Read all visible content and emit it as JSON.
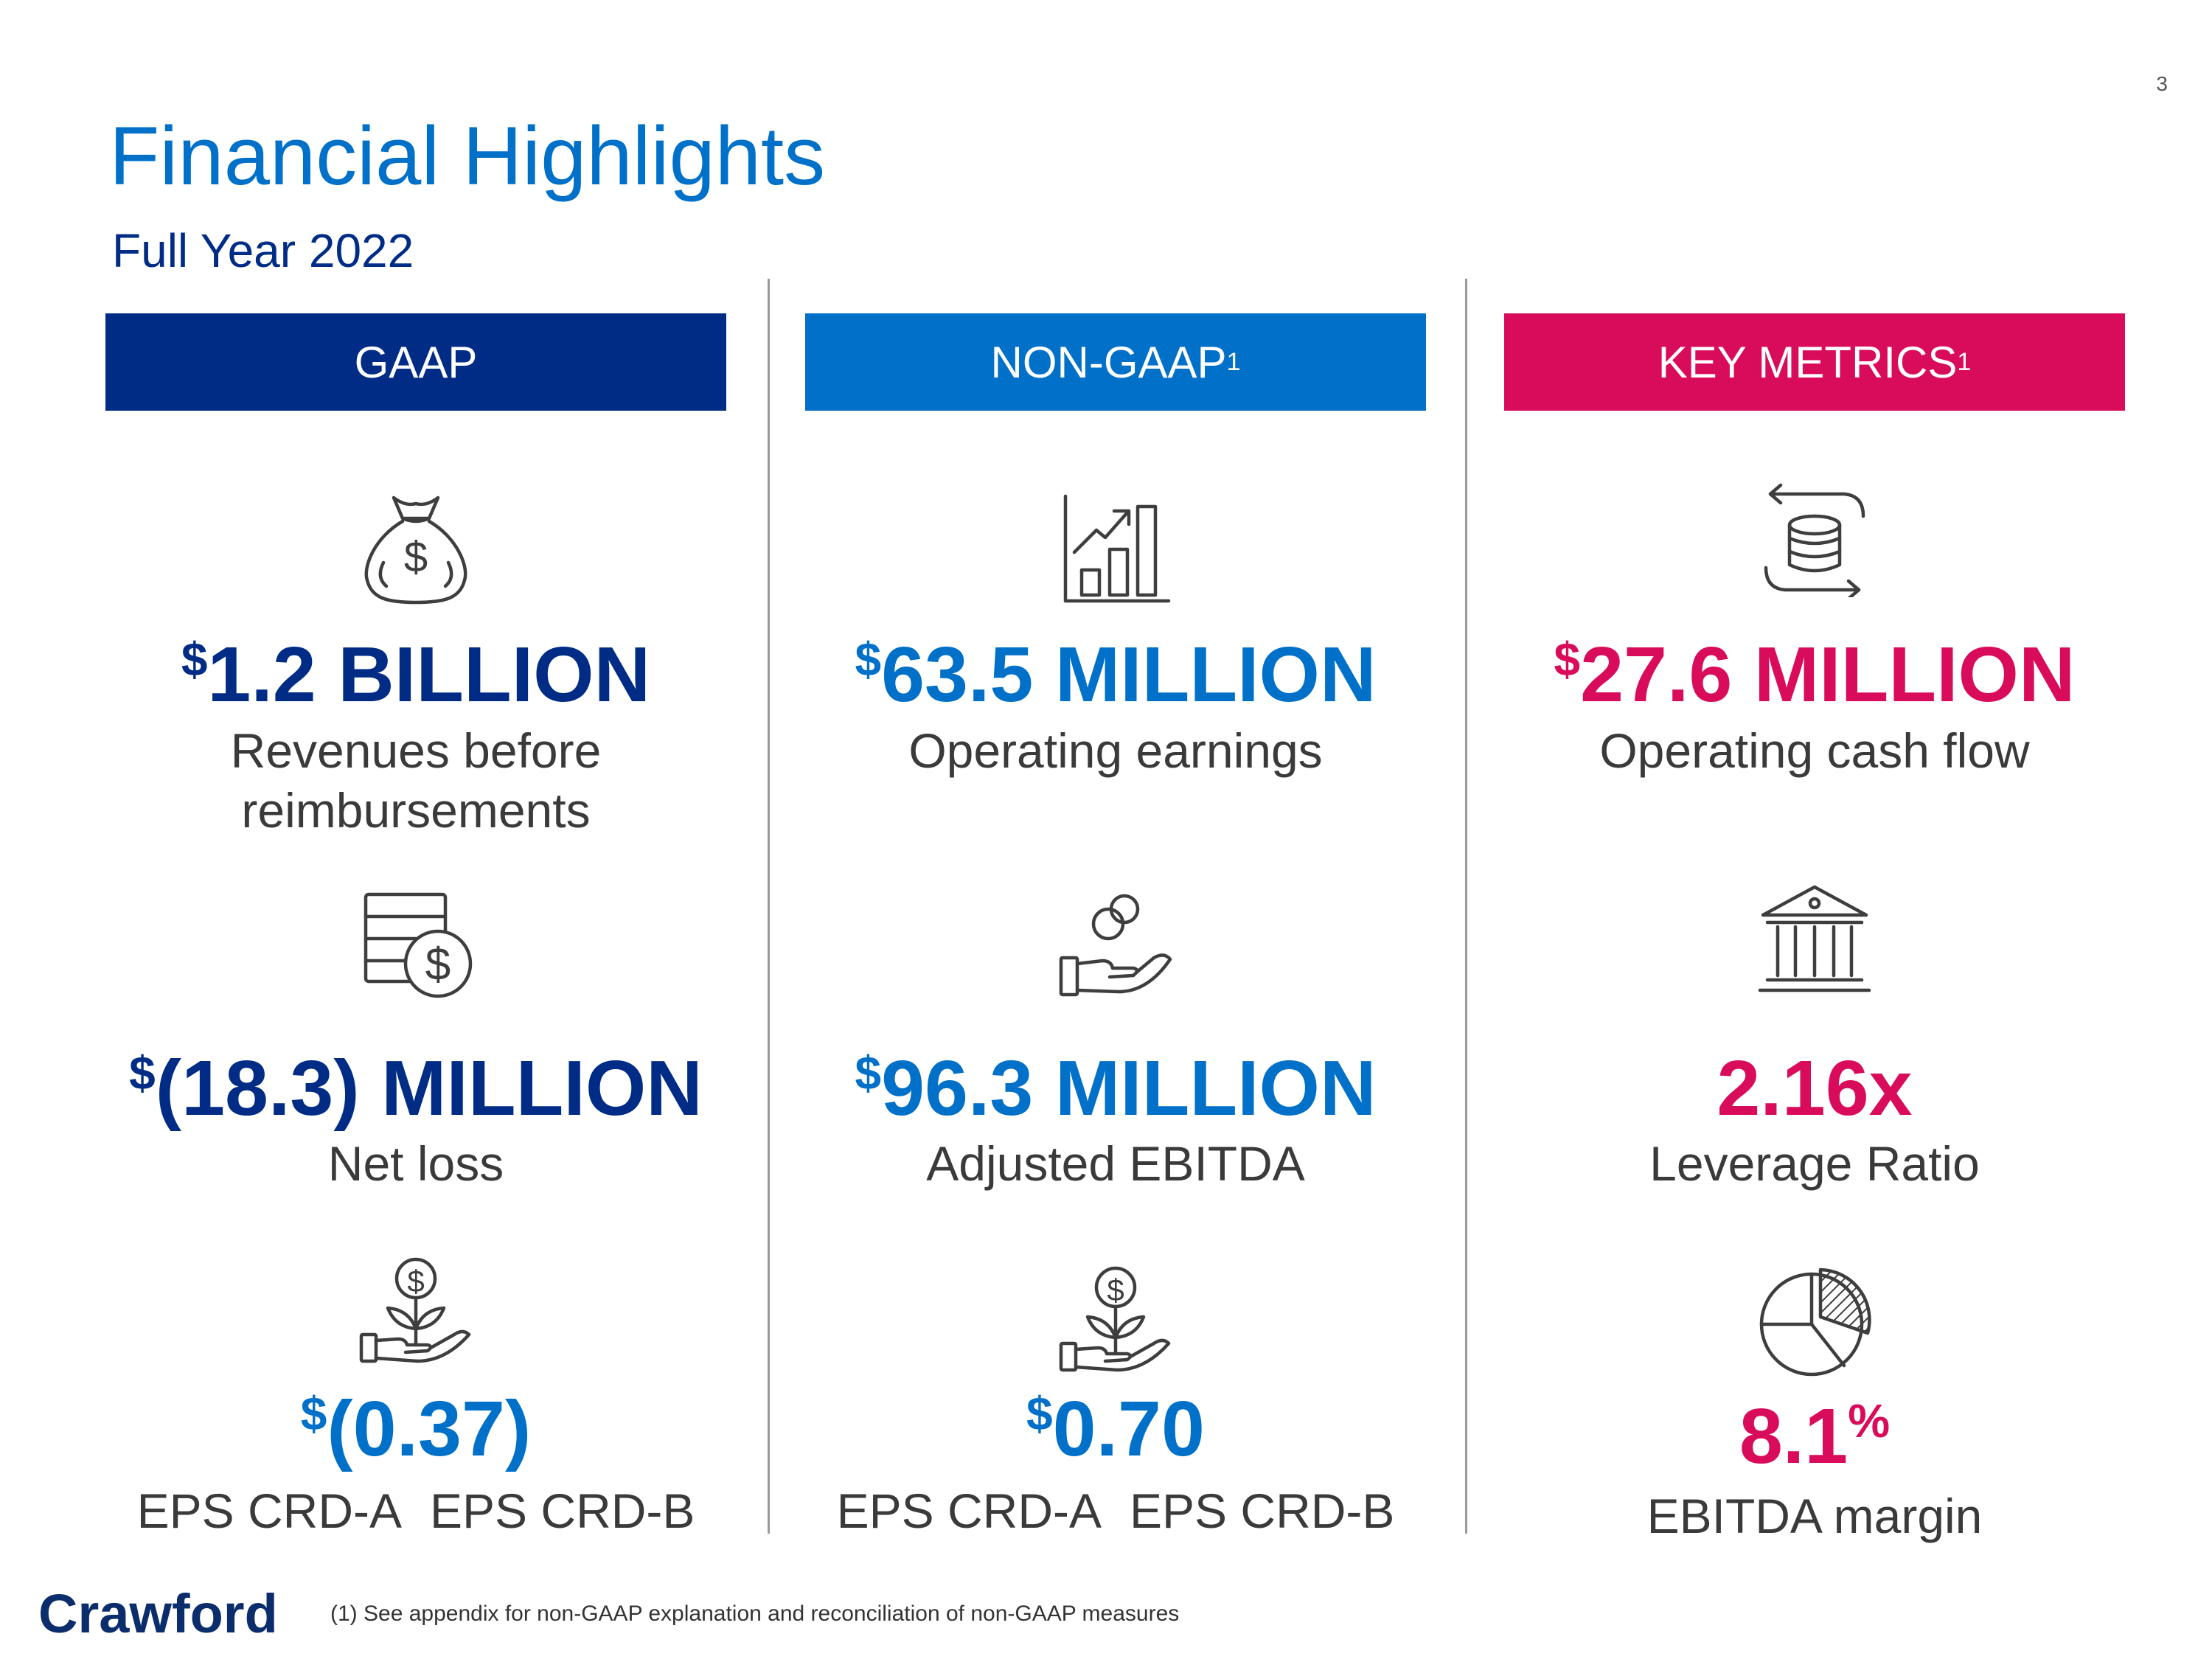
{
  "page_number": "3",
  "title": "Financial Highlights",
  "subtitle": "Full Year 2022",
  "columns": [
    {
      "header": "GAAP",
      "header_sup": "",
      "color": "#002c86",
      "header_bg": "#002c86",
      "items": [
        {
          "icon": "money-bag-icon",
          "currency": "$",
          "value": "1.2 BILLION",
          "label_line1": "Revenues before",
          "label_line2": "reimbursements"
        },
        {
          "icon": "dollar-ledger-icon",
          "currency": "$",
          "value": "(18.3) MILLION",
          "label_line1": "Net loss"
        },
        {
          "icon": "plant-dollar-hand-icon",
          "currency": "$",
          "value": "(0.37)",
          "eps_a": "EPS CRD-A",
          "eps_b": "EPS CRD-B",
          "value_color": "#0070c8"
        }
      ]
    },
    {
      "header": "NON-GAAP",
      "header_sup": "1",
      "color": "#0070c8",
      "header_bg": "#0070c8",
      "items": [
        {
          "icon": "growth-chart-icon",
          "currency": "$",
          "value": "63.5 MILLION",
          "label_line1": "Operating earnings"
        },
        {
          "icon": "hand-coins-icon",
          "currency": "$",
          "value": "96.3 MILLION",
          "label_line1": "Adjusted EBITDA"
        },
        {
          "icon": "plant-dollar-hand-icon",
          "currency": "$",
          "value": "0.70",
          "eps_a": "EPS CRD-A",
          "eps_b": "EPS CRD-B"
        }
      ]
    },
    {
      "header": "KEY METRICS",
      "header_sup": "1",
      "color": "#d90b5b",
      "header_bg": "#d90b5b",
      "items": [
        {
          "icon": "cash-flow-coins-icon",
          "currency": "$",
          "value": "27.6 MILLION",
          "label_line1": "Operating cash flow"
        },
        {
          "icon": "bank-icon",
          "value": "2.16x",
          "label_line1": "Leverage Ratio"
        },
        {
          "icon": "pie-chart-icon",
          "value": "8.1",
          "percent": "%",
          "label_line1": "EBITDA margin"
        }
      ]
    }
  ],
  "logo": "Crawford",
  "footnote": "(1)  See appendix for non-GAAP explanation and reconciliation of non-GAAP measures"
}
